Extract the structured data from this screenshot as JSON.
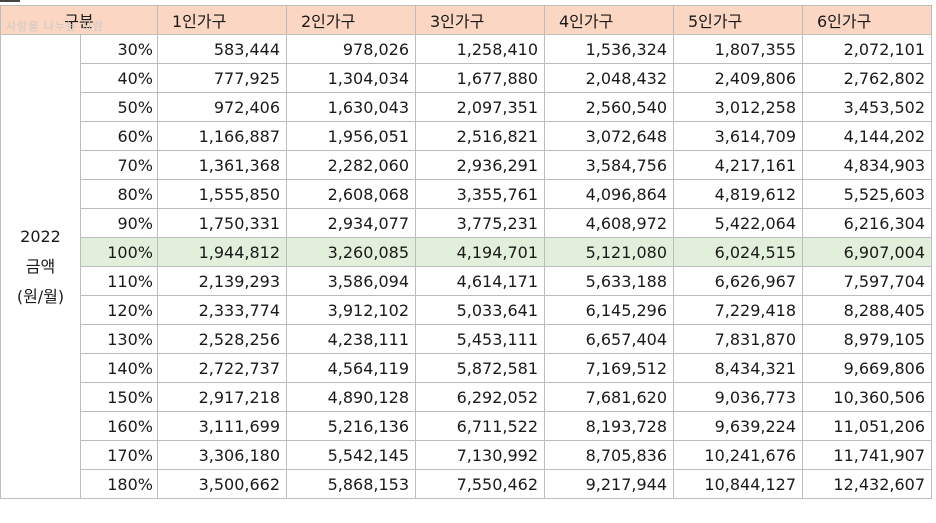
{
  "table": {
    "corner_label": "구분",
    "columns": [
      "1인가구",
      "2인가구",
      "3인가구",
      "4인가구",
      "5인가구",
      "6인가구"
    ],
    "row_group_label": [
      "2022",
      "금액",
      "(원/월)"
    ],
    "watermark": "사랑을 나누는 사람",
    "highlight_row": "100%",
    "rows": [
      {
        "pct": "30%",
        "values": [
          "583,444",
          "978,026",
          "1,258,410",
          "1,536,324",
          "1,807,355",
          "2,072,101"
        ]
      },
      {
        "pct": "40%",
        "values": [
          "777,925",
          "1,304,034",
          "1,677,880",
          "2,048,432",
          "2,409,806",
          "2,762,802"
        ]
      },
      {
        "pct": "50%",
        "values": [
          "972,406",
          "1,630,043",
          "2,097,351",
          "2,560,540",
          "3,012,258",
          "3,453,502"
        ]
      },
      {
        "pct": "60%",
        "values": [
          "1,166,887",
          "1,956,051",
          "2,516,821",
          "3,072,648",
          "3,614,709",
          "4,144,202"
        ]
      },
      {
        "pct": "70%",
        "values": [
          "1,361,368",
          "2,282,060",
          "2,936,291",
          "3,584,756",
          "4,217,161",
          "4,834,903"
        ]
      },
      {
        "pct": "80%",
        "values": [
          "1,555,850",
          "2,608,068",
          "3,355,761",
          "4,096,864",
          "4,819,612",
          "5,525,603"
        ]
      },
      {
        "pct": "90%",
        "values": [
          "1,750,331",
          "2,934,077",
          "3,775,231",
          "4,608,972",
          "5,422,064",
          "6,216,304"
        ]
      },
      {
        "pct": "100%",
        "values": [
          "1,944,812",
          "3,260,085",
          "4,194,701",
          "5,121,080",
          "6,024,515",
          "6,907,004"
        ]
      },
      {
        "pct": "110%",
        "values": [
          "2,139,293",
          "3,586,094",
          "4,614,171",
          "5,633,188",
          "6,626,967",
          "7,597,704"
        ]
      },
      {
        "pct": "120%",
        "values": [
          "2,333,774",
          "3,912,102",
          "5,033,641",
          "6,145,296",
          "7,229,418",
          "8,288,405"
        ]
      },
      {
        "pct": "130%",
        "values": [
          "2,528,256",
          "4,238,111",
          "5,453,111",
          "6,657,404",
          "7,831,870",
          "8,979,105"
        ]
      },
      {
        "pct": "140%",
        "values": [
          "2,722,737",
          "4,564,119",
          "5,872,581",
          "7,169,512",
          "8,434,321",
          "9,669,806"
        ]
      },
      {
        "pct": "150%",
        "values": [
          "2,917,218",
          "4,890,128",
          "6,292,052",
          "7,681,620",
          "9,036,773",
          "10,360,506"
        ]
      },
      {
        "pct": "160%",
        "values": [
          "3,111,699",
          "5,216,136",
          "6,711,522",
          "8,193,728",
          "9,639,224",
          "11,051,206"
        ]
      },
      {
        "pct": "170%",
        "values": [
          "3,306,180",
          "5,542,145",
          "7,130,992",
          "8,705,836",
          "10,241,676",
          "11,741,907"
        ]
      },
      {
        "pct": "180%",
        "values": [
          "3,500,662",
          "5,868,153",
          "7,550,462",
          "9,217,944",
          "10,844,127",
          "12,432,607"
        ]
      }
    ]
  }
}
